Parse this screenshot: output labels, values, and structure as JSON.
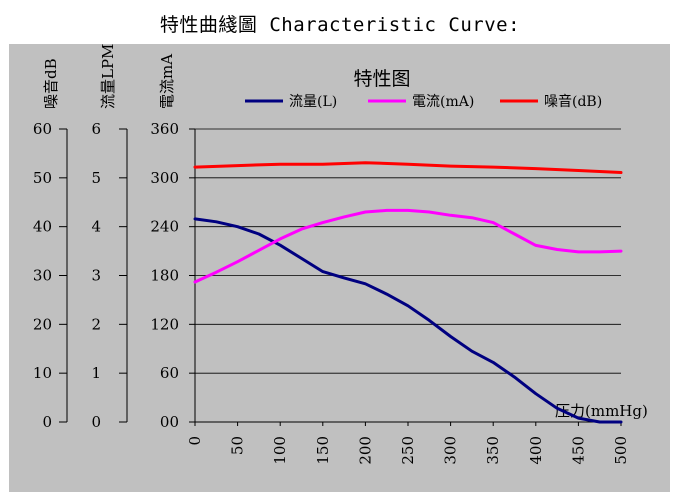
{
  "heading": "特性曲綫圖 Characteristic Curve:",
  "chart_data": {
    "type": "line",
    "title": "特性图",
    "xlabel": "压力(mmHg)",
    "x": [
      0,
      50,
      100,
      150,
      200,
      250,
      300,
      350,
      400,
      450,
      500
    ],
    "xlim": [
      0,
      500
    ],
    "xticks": [
      "0",
      "50",
      "100",
      "150",
      "200",
      "250",
      "300",
      "350",
      "400",
      "450",
      "500"
    ],
    "grid": true,
    "legend_position": "top",
    "axes": [
      {
        "id": "current",
        "label": "電流mA",
        "ticks": [
          "00",
          "60",
          "120",
          "180",
          "240",
          "300",
          "360"
        ],
        "range": [
          0,
          360
        ]
      },
      {
        "id": "flow",
        "label": "流量LPM",
        "ticks": [
          "0",
          "1",
          "2",
          "3",
          "4",
          "5",
          "6"
        ],
        "range": [
          0,
          6
        ]
      },
      {
        "id": "noise",
        "label": "噪音dB",
        "ticks": [
          "0",
          "10",
          "20",
          "30",
          "40",
          "50",
          "60"
        ],
        "range": [
          0,
          60
        ]
      }
    ],
    "series": [
      {
        "name": "流量(L)",
        "axis": "flow",
        "color": "#000080",
        "x": [
          0,
          25,
          50,
          75,
          100,
          125,
          150,
          175,
          200,
          225,
          250,
          275,
          300,
          325,
          350,
          375,
          400,
          425,
          450,
          475,
          500
        ],
        "values": [
          4.16,
          4.1,
          4.0,
          3.85,
          3.62,
          3.35,
          3.08,
          2.95,
          2.83,
          2.62,
          2.38,
          2.08,
          1.75,
          1.45,
          1.22,
          0.92,
          0.58,
          0.28,
          0.08,
          0.0,
          0.0
        ]
      },
      {
        "name": "電流(mA)",
        "axis": "current",
        "color": "#ff00ff",
        "x": [
          0,
          25,
          50,
          75,
          100,
          125,
          150,
          175,
          200,
          225,
          250,
          275,
          300,
          325,
          350,
          375,
          400,
          425,
          450,
          475,
          500
        ],
        "values": [
          172,
          184,
          197,
          211,
          225,
          237,
          245,
          252,
          258,
          260,
          260,
          258,
          254,
          251,
          245,
          231,
          217,
          212,
          209,
          209,
          210
        ]
      },
      {
        "name": "噪音(dB)",
        "axis": "noise",
        "color": "#ff0000",
        "x": [
          0,
          50,
          100,
          150,
          200,
          250,
          300,
          350,
          400,
          450,
          500
        ],
        "values": [
          52.2,
          52.5,
          52.8,
          52.8,
          53.1,
          52.8,
          52.4,
          52.2,
          51.9,
          51.5,
          51.1
        ]
      }
    ]
  }
}
